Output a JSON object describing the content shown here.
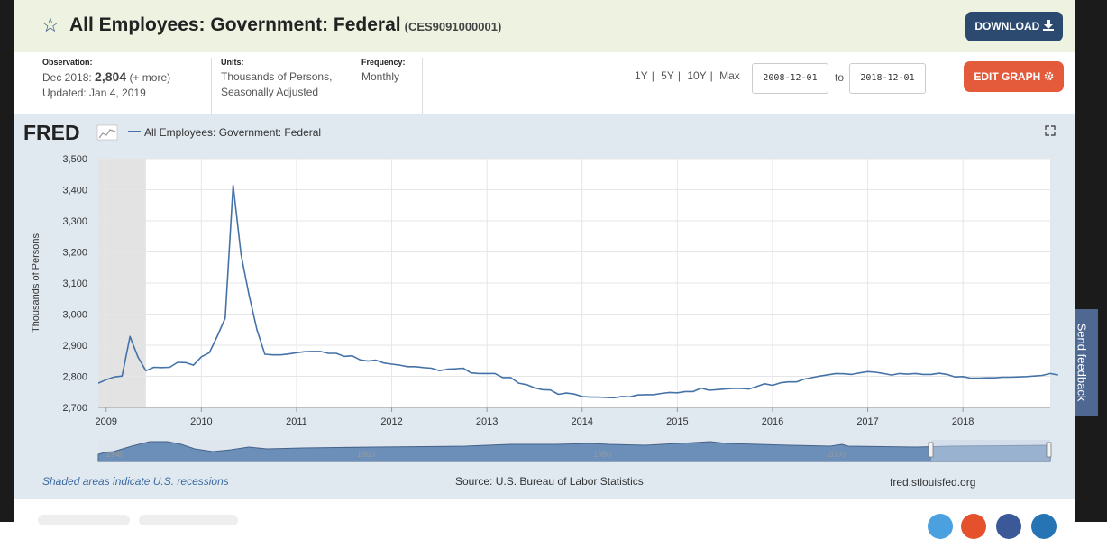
{
  "header": {
    "title": "All Employees: Government: Federal",
    "series_id": "(CES9091000001)",
    "download_label": "DOWNLOAD"
  },
  "meta": {
    "observation_label": "Observation:",
    "observation_date": "Dec 2018:",
    "observation_value": "2,804",
    "observation_more": "(+ more)",
    "updated": "Updated: Jan 4, 2019",
    "units_label": "Units:",
    "units_line1": "Thousands of Persons,",
    "units_line2": "Seasonally Adjusted",
    "frequency_label": "Frequency:",
    "frequency": "Monthly"
  },
  "range": {
    "options": [
      "1Y",
      "5Y",
      "10Y",
      "Max"
    ],
    "separator": "|",
    "start": "2008-12-01",
    "to_label": "to",
    "end": "2018-12-01",
    "edit_label": "EDIT GRAPH"
  },
  "panel": {
    "logo": "FRED",
    "legend": "All Employees: Government: Federal",
    "recession_note": "Shaded areas indicate U.S. recessions",
    "source": "Source: U.S. Bureau of Labor Statistics",
    "site": "fred.stlouisfed.org",
    "navigator_labels": [
      "1940",
      "1960",
      "1980",
      "2000"
    ]
  },
  "feedback_label": "Send feedback",
  "colors": {
    "line": "#4572a7",
    "recession": "#e3e3e3",
    "panel": "#e1e9f0",
    "download": "#2c4a70",
    "edit": "#e45b3b"
  },
  "chart_data": {
    "type": "line",
    "title": "All Employees: Government: Federal",
    "xlabel": "",
    "ylabel": "Thousands of Persons",
    "ylim": [
      2700,
      3500
    ],
    "yticks": [
      2700,
      2800,
      2900,
      3000,
      3100,
      3200,
      3300,
      3400,
      3500
    ],
    "yticklabels": [
      "2,700",
      "2,800",
      "2,900",
      "3,000",
      "3,100",
      "3,200",
      "3,300",
      "3,400",
      "3,500"
    ],
    "xlim": [
      2008.917,
      2018.917
    ],
    "xticks": [
      2009,
      2010,
      2011,
      2012,
      2013,
      2014,
      2015,
      2016,
      2017,
      2018
    ],
    "xticklabels": [
      "2009",
      "2010",
      "2011",
      "2012",
      "2013",
      "2014",
      "2015",
      "2016",
      "2017",
      "2018"
    ],
    "recession": [
      2008.917,
      2009.417
    ],
    "series": [
      {
        "name": "All Employees: Government: Federal",
        "x_start": 2008.917,
        "x_step": 0.08333,
        "values": [
          2778,
          2789,
          2798,
          2801,
          2928,
          2862,
          2818,
          2829,
          2828,
          2829,
          2845,
          2844,
          2836,
          2863,
          2876,
          2929,
          2987,
          3415,
          3192,
          3062,
          2950,
          2871,
          2869,
          2869,
          2872,
          2876,
          2879,
          2880,
          2880,
          2874,
          2874,
          2864,
          2866,
          2853,
          2849,
          2852,
          2843,
          2839,
          2836,
          2831,
          2831,
          2828,
          2826,
          2818,
          2823,
          2824,
          2826,
          2811,
          2809,
          2809,
          2809,
          2796,
          2796,
          2778,
          2773,
          2763,
          2757,
          2756,
          2742,
          2746,
          2743,
          2735,
          2733,
          2733,
          2732,
          2731,
          2735,
          2734,
          2740,
          2741,
          2741,
          2745,
          2748,
          2747,
          2751,
          2751,
          2762,
          2755,
          2757,
          2759,
          2761,
          2761,
          2759,
          2767,
          2776,
          2771,
          2779,
          2782,
          2782,
          2791,
          2796,
          2801,
          2805,
          2809,
          2808,
          2806,
          2811,
          2815,
          2813,
          2809,
          2804,
          2809,
          2807,
          2809,
          2806,
          2806,
          2810,
          2806,
          2798,
          2799,
          2794,
          2794,
          2795,
          2795,
          2797,
          2797,
          2798,
          2799,
          2801,
          2803,
          2809,
          2804
        ]
      }
    ]
  }
}
